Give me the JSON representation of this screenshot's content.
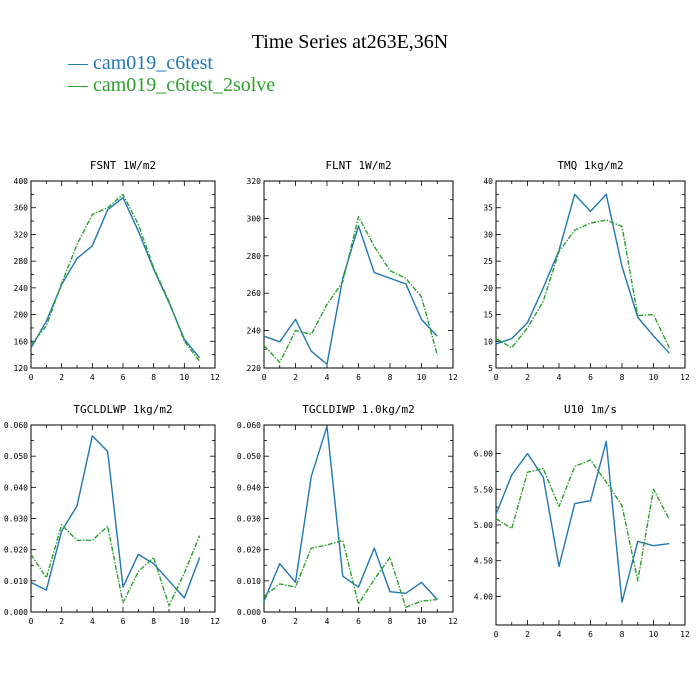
{
  "figure": {
    "title": "Time Series at263E,36N",
    "legend": [
      {
        "label": "— cam019_c6test",
        "color": "#1f77b4"
      },
      {
        "label": "— cam019_c6test_2solve",
        "color": "#2ca02c"
      }
    ]
  },
  "chart_data": [
    {
      "type": "line",
      "title": "FSNT   1W/m2",
      "x": [
        0,
        1,
        2,
        3,
        4,
        5,
        6,
        7,
        8,
        9,
        10,
        11
      ],
      "xlim": [
        0,
        12
      ],
      "xticks": [
        "0",
        "2",
        "4",
        "6",
        "8",
        "10",
        "12"
      ],
      "ylim": [
        120,
        400
      ],
      "yticks": [
        "120",
        "160",
        "200",
        "240",
        "280",
        "320",
        "360",
        "400"
      ],
      "series": [
        {
          "values": [
            150,
            190,
            245,
            284,
            303,
            357,
            375,
            325,
            268,
            218,
            163,
            135
          ],
          "color": "#1f77b4",
          "dash": "solid"
        },
        {
          "values": [
            155,
            183,
            247,
            305,
            350,
            360,
            380,
            335,
            270,
            220,
            160,
            130
          ],
          "color": "#2ca02c",
          "dash": "dashed"
        }
      ]
    },
    {
      "type": "line",
      "title": "FLNT   1W/m2",
      "x": [
        0,
        1,
        2,
        3,
        4,
        5,
        6,
        7,
        8,
        9,
        10,
        11
      ],
      "xlim": [
        0,
        12
      ],
      "xticks": [
        "0",
        "2",
        "4",
        "6",
        "8",
        "10",
        "12"
      ],
      "ylim": [
        220,
        320
      ],
      "yticks": [
        "220",
        "240",
        "260",
        "280",
        "300",
        "320"
      ],
      "series": [
        {
          "values": [
            237,
            234,
            246,
            229,
            222,
            268,
            296,
            271,
            268,
            265,
            246,
            237
          ],
          "color": "#1f77b4",
          "dash": "solid"
        },
        {
          "values": [
            232,
            223,
            240,
            238,
            254,
            266,
            301,
            285,
            272,
            268,
            258,
            227
          ],
          "color": "#2ca02c",
          "dash": "dashed"
        }
      ]
    },
    {
      "type": "line",
      "title": "TMQ   1kg/m2",
      "x": [
        0,
        1,
        2,
        3,
        4,
        5,
        6,
        7,
        8,
        9,
        10,
        11
      ],
      "xlim": [
        0,
        12
      ],
      "xticks": [
        "0",
        "2",
        "4",
        "6",
        "8",
        "10",
        "12"
      ],
      "ylim": [
        5,
        40
      ],
      "yticks": [
        "5",
        "10",
        "15",
        "20",
        "25",
        "30",
        "35",
        "40"
      ],
      "series": [
        {
          "values": [
            9.5,
            10.5,
            13.5,
            20,
            27,
            37.5,
            34.3,
            37.5,
            24,
            14.5,
            11,
            7.8
          ],
          "color": "#1f77b4",
          "dash": "solid"
        },
        {
          "values": [
            10.5,
            8.8,
            12.5,
            17.5,
            26.8,
            30.8,
            32.1,
            32.7,
            31.5,
            14.8,
            15,
            8.8
          ],
          "color": "#2ca02c",
          "dash": "dashed"
        }
      ]
    },
    {
      "type": "line",
      "title": "TGCLDLWP   1kg/m2",
      "x": [
        0,
        1,
        2,
        3,
        4,
        5,
        6,
        7,
        8,
        9,
        10,
        11
      ],
      "xlim": [
        0,
        12
      ],
      "xticks": [
        "0",
        "2",
        "4",
        "6",
        "8",
        "10",
        "12"
      ],
      "ylim": [
        0,
        0.06
      ],
      "yticks": [
        "0.000",
        "0.010",
        "0.020",
        "0.030",
        "0.040",
        "0.050",
        "0.060"
      ],
      "series": [
        {
          "values": [
            0.0095,
            0.007,
            0.026,
            0.034,
            0.0565,
            0.0515,
            0.008,
            0.0185,
            0.0155,
            0.01,
            0.0045,
            0.0175
          ],
          "color": "#1f77b4",
          "dash": "solid"
        },
        {
          "values": [
            0.0185,
            0.011,
            0.028,
            0.023,
            0.023,
            0.0275,
            0.003,
            0.013,
            0.0175,
            0.002,
            0.0125,
            0.0245
          ],
          "color": "#2ca02c",
          "dash": "dashed"
        }
      ]
    },
    {
      "type": "line",
      "title": "TGCLDIWP   1.0kg/m2",
      "x": [
        0,
        1,
        2,
        3,
        4,
        5,
        6,
        7,
        8,
        9,
        10,
        11
      ],
      "xlim": [
        0,
        12
      ],
      "xticks": [
        "0",
        "2",
        "4",
        "6",
        "8",
        "10",
        "12"
      ],
      "ylim": [
        0,
        0.06
      ],
      "yticks": [
        "0.000",
        "0.010",
        "0.020",
        "0.030",
        "0.040",
        "0.050",
        "0.060"
      ],
      "series": [
        {
          "values": [
            0.0035,
            0.0155,
            0.0095,
            0.0435,
            0.0595,
            0.0115,
            0.008,
            0.0205,
            0.0065,
            0.006,
            0.0095,
            0.004
          ],
          "color": "#1f77b4",
          "dash": "solid"
        },
        {
          "values": [
            0.005,
            0.009,
            0.008,
            0.0205,
            0.0215,
            0.023,
            0.0025,
            0.0105,
            0.0175,
            0.0015,
            0.0035,
            0.004
          ],
          "color": "#2ca02c",
          "dash": "dashed"
        }
      ]
    },
    {
      "type": "line",
      "title": "U10   1m/s",
      "x": [
        0,
        1,
        2,
        3,
        4,
        5,
        6,
        7,
        8,
        9,
        10,
        11
      ],
      "xlim": [
        0,
        12
      ],
      "xticks": [
        "0",
        "2",
        "4",
        "6",
        "8",
        "10",
        "12"
      ],
      "ylim": [
        3.6,
        6.4
      ],
      "yticks": [
        "4.00",
        "4.50",
        "5.00",
        "5.50",
        "6.00"
      ],
      "series": [
        {
          "values": [
            5.15,
            5.7,
            6.0,
            5.67,
            4.42,
            5.3,
            5.34,
            6.17,
            3.92,
            4.77,
            4.71,
            4.74
          ],
          "color": "#1f77b4",
          "dash": "solid"
        },
        {
          "values": [
            5.09,
            4.95,
            5.74,
            5.79,
            5.26,
            5.82,
            5.91,
            5.6,
            5.27,
            4.22,
            5.5,
            5.08
          ],
          "color": "#2ca02c",
          "dash": "dashed"
        }
      ]
    }
  ]
}
